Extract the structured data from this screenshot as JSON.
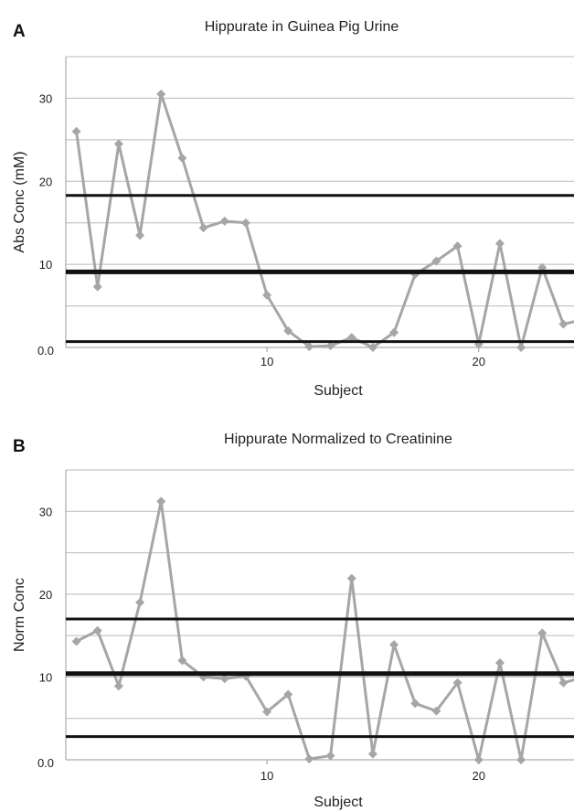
{
  "figure": {
    "panels": [
      "A",
      "B"
    ]
  },
  "chart_data": [
    {
      "type": "line",
      "panel": "A",
      "title": "Hippurate in Guinea Pig Urine",
      "xlabel": "Subject",
      "ylabel": "Abs Conc (mM)",
      "xlim": [
        0.5,
        24.5
      ],
      "ylim": [
        0,
        35
      ],
      "xticks": [
        10,
        20
      ],
      "yticks": [
        0,
        10,
        20,
        30
      ],
      "ytick_labels": [
        "0.0",
        "10",
        "20",
        "30"
      ],
      "grid": true,
      "grid_y": [
        5,
        10,
        15,
        20,
        25,
        30,
        35
      ],
      "reference_lines": [
        {
          "y": 18.3,
          "weight": "normal"
        },
        {
          "y": 9.1,
          "weight": "bold"
        },
        {
          "y": 0.7,
          "weight": "normal"
        }
      ],
      "series": [
        {
          "x": [
            1,
            2,
            3,
            4,
            5,
            6,
            7,
            8,
            9,
            10,
            11,
            12,
            13,
            14,
            15,
            16,
            17,
            18,
            19,
            20,
            21,
            22,
            23,
            24,
            25
          ],
          "values": [
            26.0,
            7.3,
            24.5,
            13.5,
            30.5,
            22.8,
            14.4,
            15.2,
            15.0,
            6.3,
            2.0,
            0.1,
            0.2,
            1.2,
            0.0,
            1.8,
            8.8,
            10.4,
            12.2,
            0.4,
            12.5,
            0.0,
            9.6,
            2.8,
            3.4
          ]
        }
      ]
    },
    {
      "type": "line",
      "panel": "B",
      "title": "Hippurate Normalized to Creatinine",
      "xlabel": "Subject",
      "ylabel": "Norm Conc",
      "xlim": [
        0.5,
        24.5
      ],
      "ylim": [
        0,
        35
      ],
      "xticks": [
        10,
        20
      ],
      "yticks": [
        0,
        10,
        20,
        30
      ],
      "ytick_labels": [
        "0.0",
        "10",
        "20",
        "30"
      ],
      "grid": true,
      "grid_y": [
        5,
        10,
        15,
        20,
        25,
        30,
        35
      ],
      "reference_lines": [
        {
          "y": 17.0,
          "weight": "normal"
        },
        {
          "y": 10.4,
          "weight": "bold"
        },
        {
          "y": 2.8,
          "weight": "normal"
        }
      ],
      "series": [
        {
          "x": [
            1,
            2,
            3,
            4,
            5,
            6,
            7,
            8,
            9,
            10,
            11,
            12,
            13,
            14,
            15,
            16,
            17,
            18,
            19,
            20,
            21,
            22,
            23,
            24,
            25
          ],
          "values": [
            14.3,
            15.6,
            8.9,
            19.0,
            31.2,
            12.0,
            10.0,
            9.8,
            10.1,
            5.8,
            7.9,
            0.1,
            0.5,
            21.9,
            0.7,
            13.9,
            6.8,
            5.9,
            9.3,
            0.0,
            11.7,
            0.0,
            15.3,
            9.3,
            10.0
          ]
        }
      ]
    }
  ]
}
